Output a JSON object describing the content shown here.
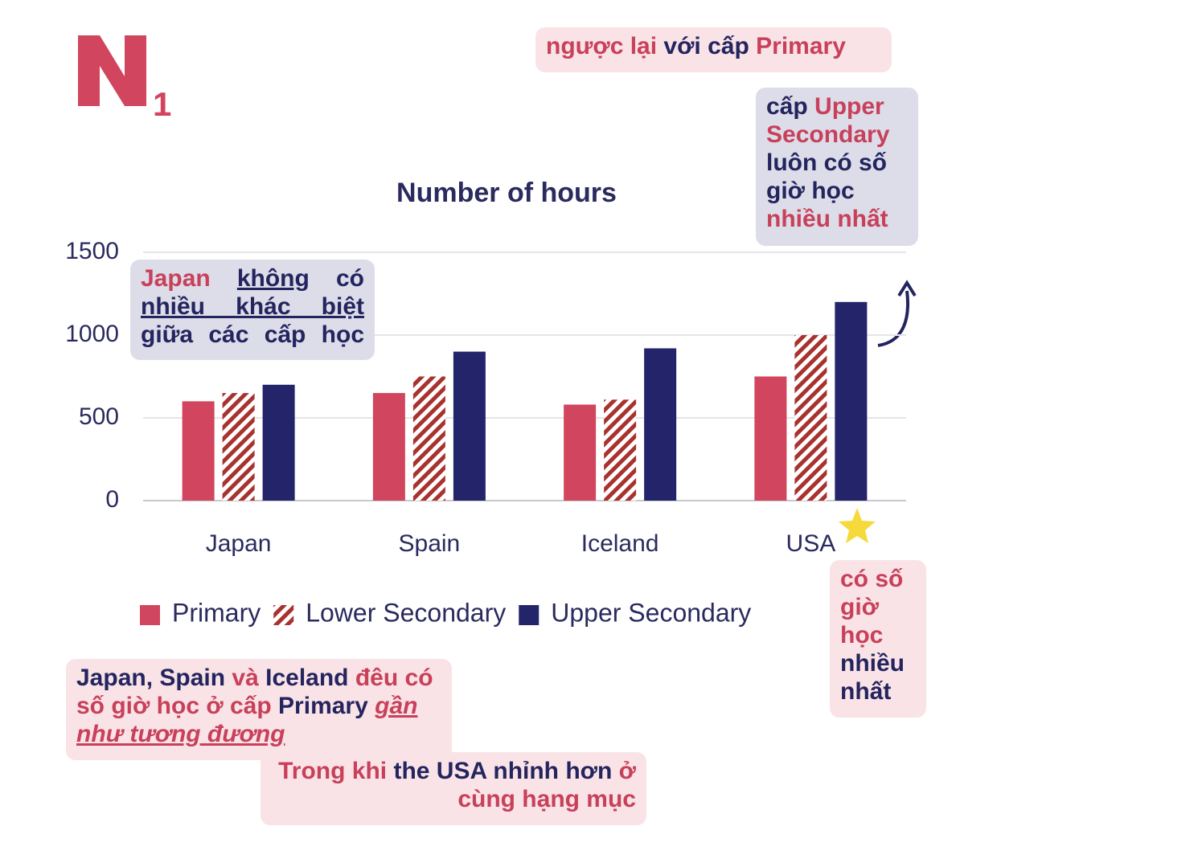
{
  "logo": {
    "subscript": "1"
  },
  "chart_data": {
    "type": "bar",
    "title": "Number of hours",
    "categories": [
      "Japan",
      "Spain",
      "Iceland",
      "USA"
    ],
    "series": [
      {
        "name": "Primary",
        "color": "#d2455e",
        "pattern": "solid",
        "values": [
          600,
          650,
          580,
          750
        ]
      },
      {
        "name": "Lower Secondary",
        "color": "#a8322e",
        "pattern": "hatch",
        "values": [
          650,
          750,
          610,
          1000
        ]
      },
      {
        "name": "Upper Secondary",
        "color": "#24246a",
        "pattern": "solid",
        "values": [
          700,
          900,
          920,
          1200
        ]
      }
    ],
    "ylim": [
      0,
      1500
    ],
    "yticks": [
      0,
      500,
      1000,
      1500
    ],
    "grid": true,
    "legend": "bottom"
  },
  "annotations": [
    {
      "segments": [
        {
          "text": "ngược lại",
          "color": "#c8405a"
        },
        {
          "text": "với cấp",
          "color": "#24245e"
        },
        {
          "text": "Primary",
          "color": "#c8405a"
        }
      ]
    },
    {
      "segments": [
        {
          "text": "cấp",
          "color": "#24245e"
        },
        {
          "text": "Upper Secondary",
          "color": "#c8405a"
        },
        {
          "text": "luôn có số giờ học",
          "color": "#24245e"
        },
        {
          "text": "nhiều nhất",
          "color": "#c8405a"
        }
      ]
    },
    {
      "segments": [
        {
          "text": "Japan",
          "color": "#c8405a"
        },
        {
          "text": "không",
          "color": "#24245e",
          "underline": true
        },
        {
          "text": "có",
          "color": "#24245e"
        },
        {
          "text": "nhiều khác biệt",
          "color": "#24245e",
          "underline": true
        },
        {
          "text": "giữa các cấp học",
          "color": "#24245e"
        }
      ]
    },
    {
      "segments": [
        {
          "text": "có số giờ học",
          "color": "#c8405a"
        },
        {
          "text": "nhiều nhất",
          "color": "#24245e"
        }
      ]
    },
    {
      "segments": [
        {
          "text": "Japan, Spain",
          "color": "#24245e"
        },
        {
          "text": "và",
          "color": "#c8405a"
        },
        {
          "text": "Iceland",
          "color": "#24245e"
        },
        {
          "text": "đêu có số giờ học ở cấp",
          "color": "#c8405a"
        },
        {
          "text": "Primary",
          "color": "#24245e"
        },
        {
          "text": "gần như tương đương",
          "color": "#c8405a",
          "underline": true,
          "italic": true
        }
      ]
    },
    {
      "segments": [
        {
          "text": "Trong khi",
          "color": "#c8405a"
        },
        {
          "text": "the USA",
          "color": "#24245e"
        },
        {
          "text": "nhỉnh hơn",
          "color": "#24245e"
        },
        {
          "text": "ở cùng hạng mục",
          "color": "#c8405a"
        }
      ]
    }
  ]
}
